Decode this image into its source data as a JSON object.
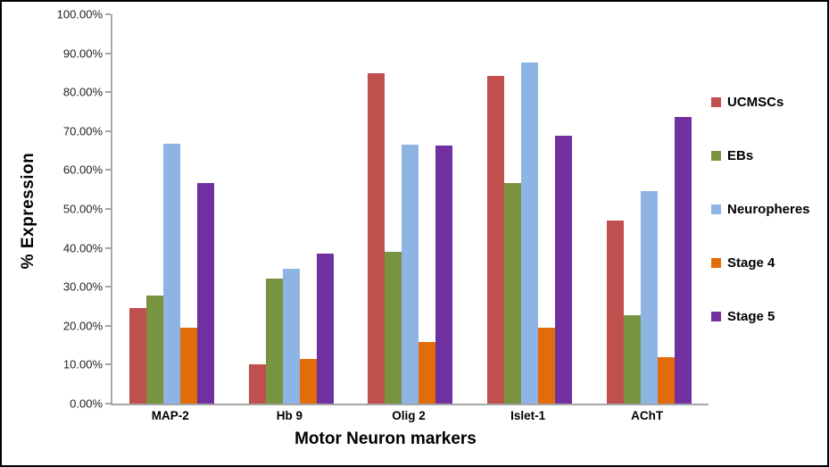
{
  "chart_data": {
    "type": "bar",
    "title": "",
    "xlabel": "Motor Neuron markers",
    "ylabel": "% Expression",
    "categories": [
      "MAP-2",
      "Hb 9",
      "Olig 2",
      "Islet-1",
      "AChT"
    ],
    "series": [
      {
        "name": "UCMSCs",
        "color": "#C0504D",
        "values": [
          24.5,
          10.0,
          84.9,
          84.1,
          47.1
        ]
      },
      {
        "name": "EBs",
        "color": "#789440",
        "values": [
          27.8,
          32.1,
          38.9,
          56.6,
          22.7
        ]
      },
      {
        "name": "Neuropheres",
        "color": "#8EB4E3",
        "values": [
          66.8,
          34.7,
          66.5,
          87.7,
          54.5
        ]
      },
      {
        "name": "Stage 4",
        "color": "#E36C0A",
        "values": [
          19.6,
          11.5,
          15.9,
          19.5,
          11.9
        ]
      },
      {
        "name": "Stage 5",
        "color": "#7030A0",
        "values": [
          56.6,
          38.6,
          66.4,
          68.8,
          73.6
        ]
      }
    ],
    "ylim": [
      0,
      100
    ],
    "ytick_step": 10,
    "ytick_labels": [
      "0.00%",
      "10.00%",
      "20.00%",
      "30.00%",
      "40.00%",
      "50.00%",
      "60.00%",
      "70.00%",
      "80.00%",
      "90.00%",
      "100.00%"
    ],
    "grid": false,
    "legend_position": "right",
    "colors": {
      "axis_line": "#A6A6A6",
      "tick_text": "#1F1F1F",
      "frame_border": "#000000",
      "background": "#FFFFFF"
    }
  }
}
